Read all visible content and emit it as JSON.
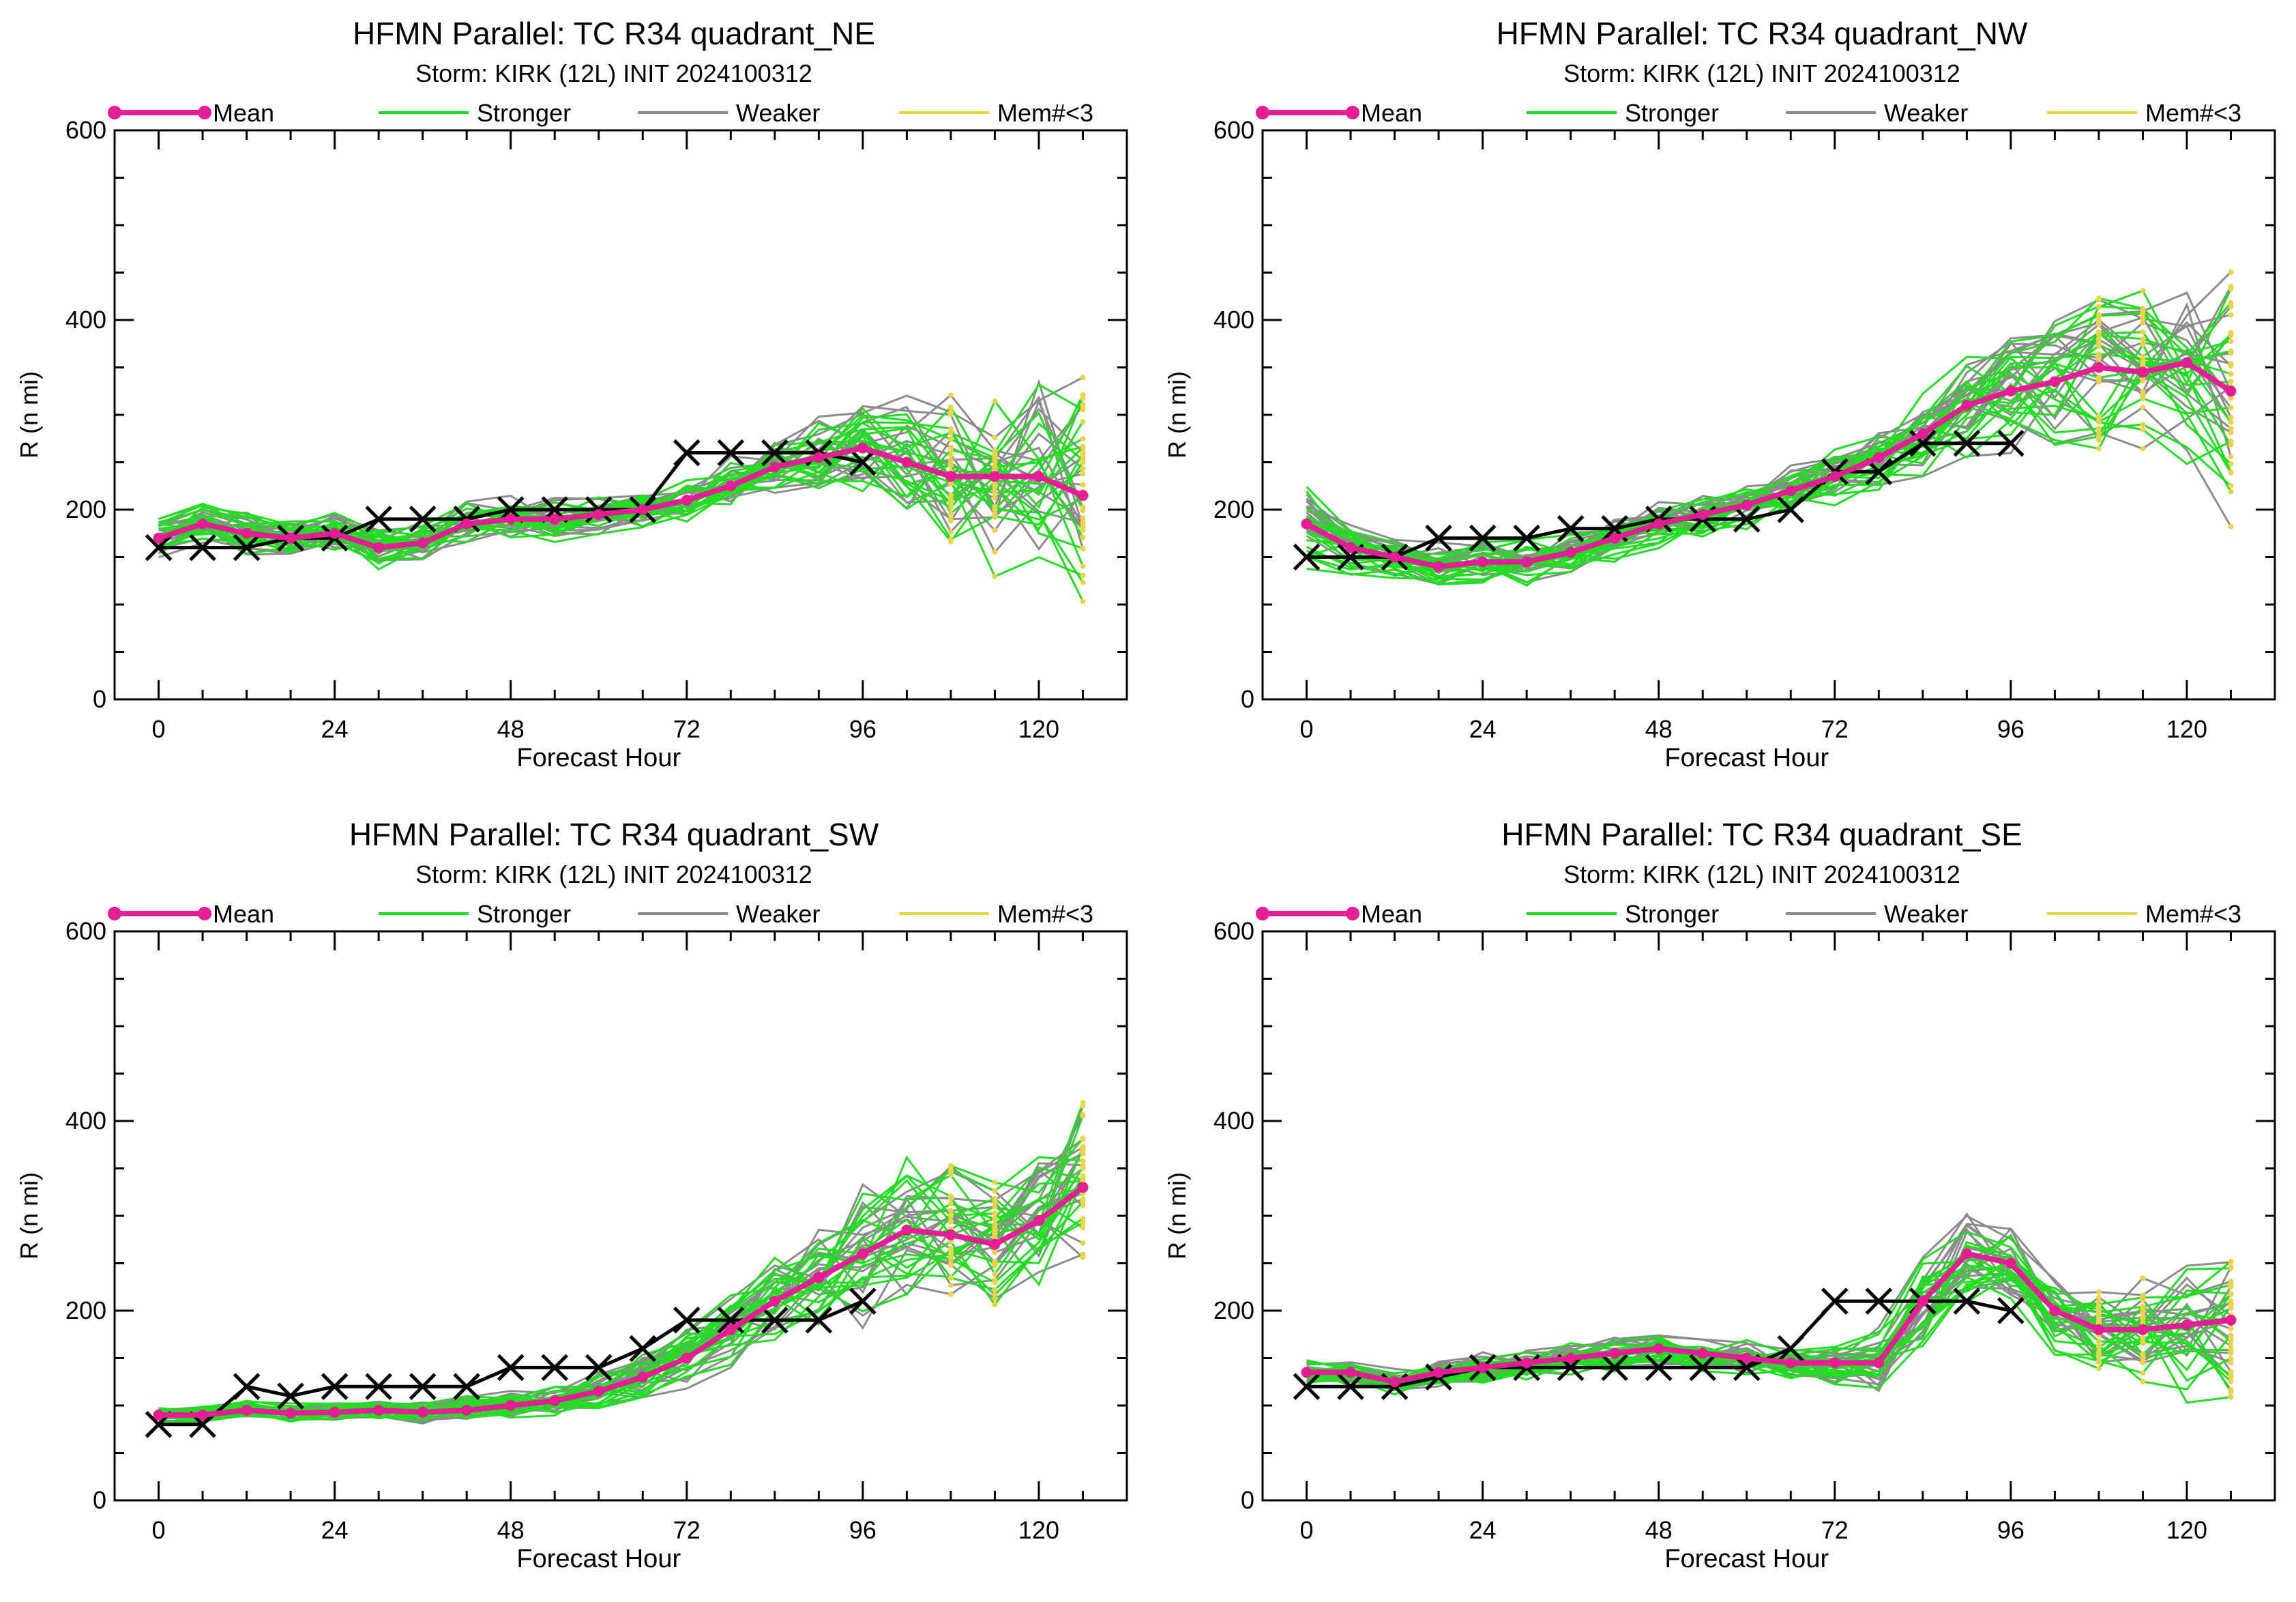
{
  "chart_data": [
    {
      "type": "line",
      "title": "HFMN Parallel: TC  R34 quadrant_NE",
      "subtitle": "Storm: KIRK (12L) INIT 2024100312",
      "xlabel": "Forecast Hour",
      "ylabel": "R (n mi)",
      "xlim": [
        -6,
        132
      ],
      "ylim": [
        0,
        600
      ],
      "xticks": [
        0,
        24,
        48,
        72,
        96,
        120
      ],
      "yticks": [
        0,
        200,
        400,
        600
      ],
      "legend": [
        "Mean",
        "Stronger",
        "Weaker",
        "Mem#<3"
      ],
      "legend_position": "top",
      "colors": {
        "mean": "#e61e96",
        "stronger": "#22dd22",
        "weaker": "#8c8c8c",
        "memlt3": "#e8d44a",
        "observed": "#000000"
      },
      "x": [
        0,
        6,
        12,
        18,
        24,
        30,
        36,
        42,
        48,
        54,
        60,
        66,
        72,
        78,
        84,
        90,
        96,
        102,
        108,
        114,
        120,
        126
      ],
      "mean": [
        170,
        185,
        175,
        170,
        175,
        160,
        165,
        185,
        190,
        190,
        195,
        200,
        210,
        225,
        245,
        255,
        265,
        250,
        235,
        235,
        235,
        215
      ],
      "observed_x": [
        0,
        6,
        12,
        18,
        24,
        30,
        36,
        42,
        48,
        54,
        60,
        66,
        72,
        78,
        84,
        90,
        96
      ],
      "observed": [
        160,
        160,
        160,
        170,
        170,
        190,
        190,
        190,
        200,
        200,
        200,
        200,
        260,
        260,
        260,
        260,
        250
      ],
      "member_spread": [
        25,
        25,
        25,
        25,
        25,
        25,
        25,
        25,
        25,
        25,
        25,
        25,
        30,
        35,
        40,
        45,
        55,
        70,
        90,
        110,
        130,
        140
      ],
      "members": 36
    },
    {
      "type": "line",
      "title": "HFMN Parallel: TC  R34 quadrant_NW",
      "subtitle": "Storm: KIRK (12L) INIT 2024100312",
      "xlabel": "Forecast Hour",
      "ylabel": "R (n mi)",
      "xlim": [
        -6,
        132
      ],
      "ylim": [
        0,
        600
      ],
      "xticks": [
        0,
        24,
        48,
        72,
        96,
        120
      ],
      "yticks": [
        0,
        200,
        400,
        600
      ],
      "legend": [
        "Mean",
        "Stronger",
        "Weaker",
        "Mem#<3"
      ],
      "legend_position": "top",
      "colors": {
        "mean": "#e61e96",
        "stronger": "#22dd22",
        "weaker": "#8c8c8c",
        "memlt3": "#e8d44a",
        "observed": "#000000"
      },
      "x": [
        0,
        6,
        12,
        18,
        24,
        30,
        36,
        42,
        48,
        54,
        60,
        66,
        72,
        78,
        84,
        90,
        96,
        102,
        108,
        114,
        120,
        126
      ],
      "mean": [
        185,
        160,
        150,
        140,
        145,
        145,
        155,
        170,
        185,
        195,
        205,
        220,
        235,
        255,
        280,
        310,
        325,
        335,
        350,
        345,
        355,
        325
      ],
      "observed_x": [
        0,
        6,
        12,
        18,
        24,
        30,
        36,
        42,
        48,
        54,
        60,
        66,
        72,
        78,
        84,
        90,
        96
      ],
      "observed": [
        150,
        150,
        150,
        170,
        170,
        170,
        180,
        180,
        190,
        190,
        190,
        200,
        240,
        240,
        270,
        270,
        270
      ],
      "member_spread": [
        50,
        30,
        25,
        25,
        25,
        25,
        25,
        25,
        25,
        25,
        25,
        25,
        30,
        35,
        45,
        55,
        65,
        75,
        85,
        95,
        110,
        140
      ],
      "members": 36
    },
    {
      "type": "line",
      "title": "HFMN Parallel: TC  R34 quadrant_SW",
      "subtitle": "Storm: KIRK (12L) INIT 2024100312",
      "xlabel": "Forecast Hour",
      "ylabel": "R (n mi)",
      "xlim": [
        -6,
        132
      ],
      "ylim": [
        0,
        600
      ],
      "xticks": [
        0,
        24,
        48,
        72,
        96,
        120
      ],
      "yticks": [
        0,
        200,
        400,
        600
      ],
      "legend": [
        "Mean",
        "Stronger",
        "Weaker",
        "Mem#<3"
      ],
      "legend_position": "top",
      "colors": {
        "mean": "#e61e96",
        "stronger": "#22dd22",
        "weaker": "#8c8c8c",
        "memlt3": "#e8d44a",
        "observed": "#000000"
      },
      "x": [
        0,
        6,
        12,
        18,
        24,
        30,
        36,
        42,
        48,
        54,
        60,
        66,
        72,
        78,
        84,
        90,
        96,
        102,
        108,
        114,
        120,
        126
      ],
      "mean": [
        90,
        90,
        95,
        92,
        93,
        95,
        93,
        95,
        100,
        105,
        115,
        130,
        150,
        180,
        210,
        235,
        260,
        285,
        280,
        270,
        295,
        330
      ],
      "observed_x": [
        0,
        6,
        12,
        18,
        24,
        30,
        36,
        42,
        48,
        54,
        60,
        66,
        72,
        78,
        84,
        90,
        96
      ],
      "observed": [
        80,
        80,
        120,
        110,
        120,
        120,
        120,
        120,
        140,
        140,
        140,
        160,
        190,
        190,
        190,
        190,
        210
      ],
      "member_spread": [
        10,
        10,
        10,
        10,
        10,
        10,
        12,
        14,
        15,
        18,
        20,
        25,
        30,
        40,
        50,
        60,
        80,
        90,
        80,
        70,
        80,
        90
      ],
      "members": 36
    },
    {
      "type": "line",
      "title": "HFMN Parallel: TC  R34 quadrant_SE",
      "subtitle": "Storm: KIRK (12L) INIT 2024100312",
      "xlabel": "Forecast Hour",
      "ylabel": "R (n mi)",
      "xlim": [
        -6,
        132
      ],
      "ylim": [
        0,
        600
      ],
      "xticks": [
        0,
        24,
        48,
        72,
        96,
        120
      ],
      "yticks": [
        0,
        200,
        400,
        600
      ],
      "legend": [
        "Mean",
        "Stronger",
        "Weaker",
        "Mem#<3"
      ],
      "legend_position": "top",
      "colors": {
        "mean": "#e61e96",
        "stronger": "#22dd22",
        "weaker": "#8c8c8c",
        "memlt3": "#e8d44a",
        "observed": "#000000"
      },
      "x": [
        0,
        6,
        12,
        18,
        24,
        30,
        36,
        42,
        48,
        54,
        60,
        66,
        72,
        78,
        84,
        90,
        96,
        102,
        108,
        114,
        120,
        126
      ],
      "mean": [
        135,
        135,
        125,
        135,
        140,
        145,
        150,
        155,
        160,
        155,
        150,
        145,
        145,
        145,
        210,
        260,
        250,
        200,
        180,
        180,
        185,
        190
      ],
      "observed_x": [
        0,
        6,
        12,
        18,
        24,
        30,
        36,
        42,
        48,
        54,
        60,
        66,
        72,
        78,
        84,
        90,
        96
      ],
      "observed": [
        120,
        120,
        120,
        130,
        140,
        140,
        140,
        140,
        140,
        140,
        140,
        160,
        210,
        210,
        210,
        210,
        200
      ],
      "member_spread": [
        15,
        15,
        15,
        15,
        18,
        18,
        20,
        20,
        20,
        20,
        20,
        22,
        25,
        40,
        60,
        60,
        50,
        45,
        50,
        60,
        80,
        90
      ],
      "members": 36
    }
  ]
}
